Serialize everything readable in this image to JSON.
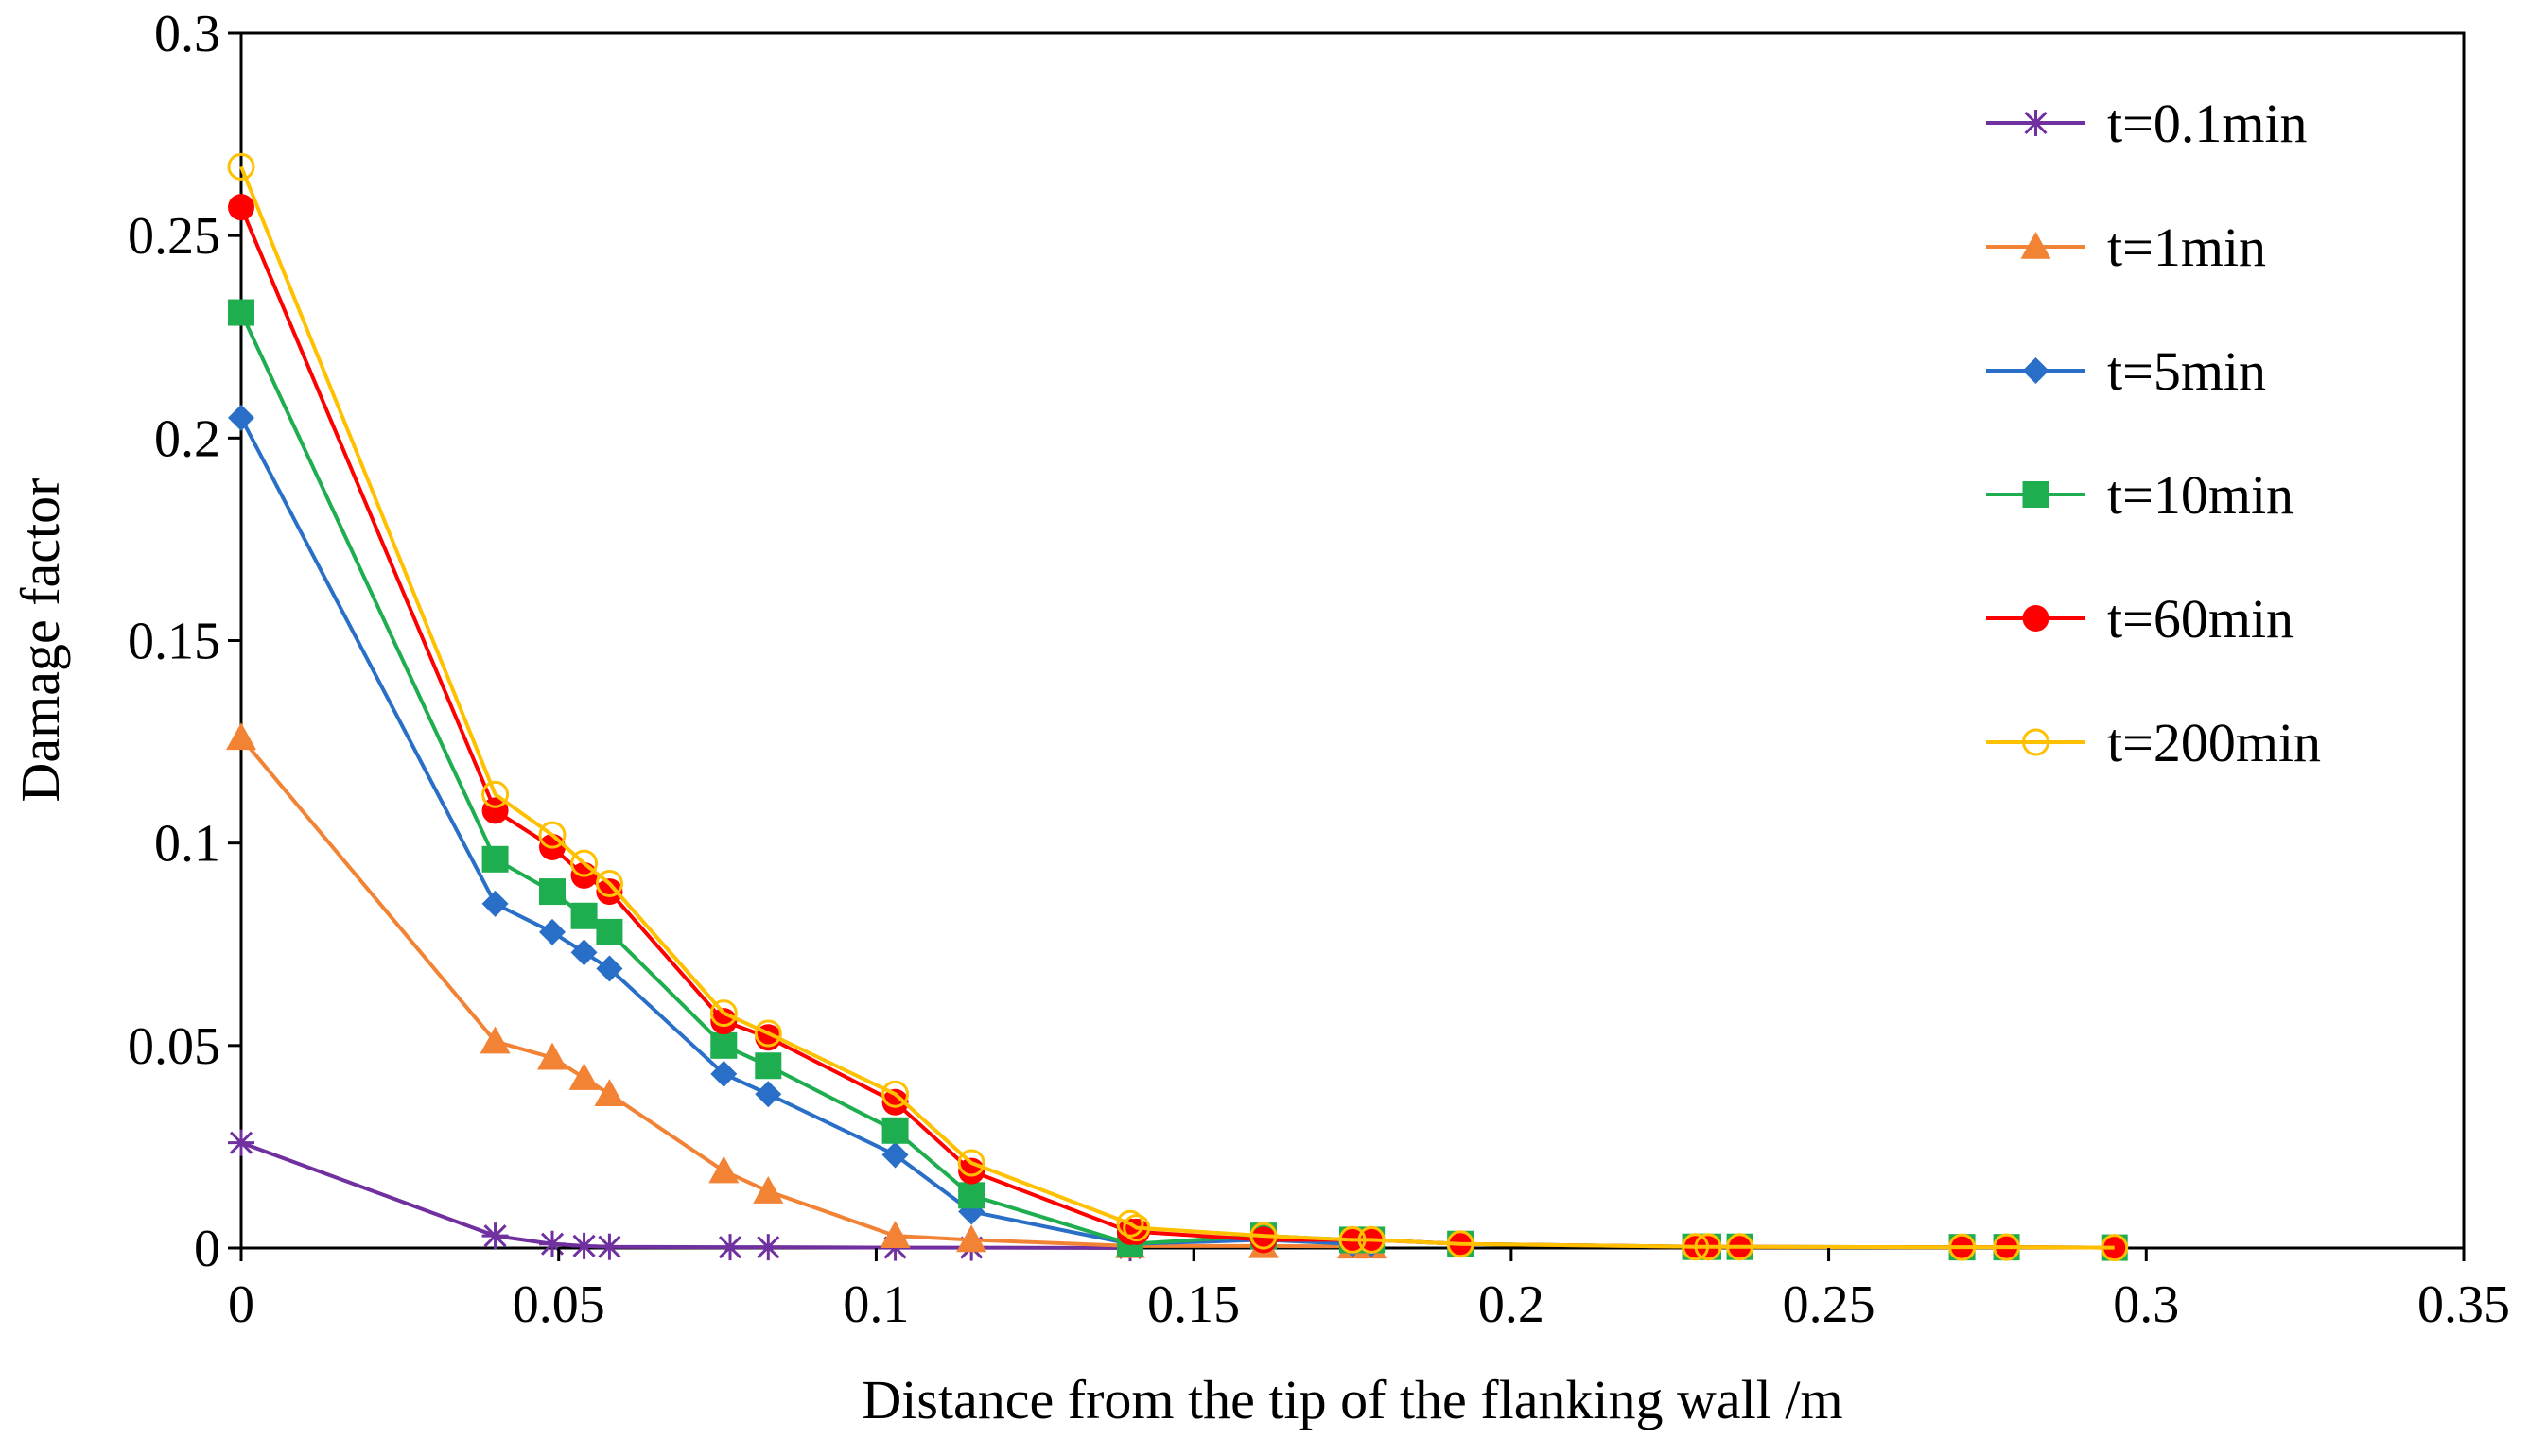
{
  "chart_data": {
    "type": "line",
    "title": "",
    "xlabel": "Distance from the tip of the flanking wall /m",
    "ylabel": "Damage factor",
    "xlim": [
      0,
      0.35
    ],
    "ylim": [
      0,
      0.3
    ],
    "x_ticks": [
      0,
      0.05,
      0.1,
      0.15,
      0.2,
      0.25,
      0.3,
      0.35
    ],
    "x_tick_labels": [
      "0",
      "0.05",
      "0.1",
      "0.15",
      "0.2",
      "0.25",
      "0.3",
      "0.35"
    ],
    "y_ticks": [
      0,
      0.05,
      0.1,
      0.15,
      0.2,
      0.25,
      0.3
    ],
    "y_tick_labels": [
      "0",
      "0.05",
      "0.1",
      "0.15",
      "0.2",
      "0.25",
      "0.3"
    ],
    "grid": false,
    "legend_position": "right",
    "series": [
      {
        "name": "t=0.1min",
        "color": "#7030a0",
        "marker": "star",
        "x": [
          0,
          0.04,
          0.049,
          0.054,
          0.058,
          0.077,
          0.083,
          0.103,
          0.115,
          0.14
        ],
        "y": [
          0.026,
          0.003,
          0.001,
          0.0005,
          0.0003,
          0.0002,
          0.0002,
          0.0001,
          0.0001,
          0.0
        ]
      },
      {
        "name": "t=1min",
        "color": "#f28234",
        "marker": "triangle",
        "x": [
          0,
          0.04,
          0.049,
          0.054,
          0.058,
          0.076,
          0.083,
          0.103,
          0.115,
          0.14,
          0.161,
          0.175,
          0.178
        ],
        "y": [
          0.126,
          0.051,
          0.047,
          0.042,
          0.038,
          0.019,
          0.014,
          0.003,
          0.002,
          0.0005,
          0.0005,
          0.0004,
          0.0004
        ]
      },
      {
        "name": "t=5min",
        "color": "#2a6fc7",
        "marker": "diamond",
        "x": [
          0,
          0.04,
          0.049,
          0.054,
          0.058,
          0.076,
          0.083,
          0.103,
          0.115,
          0.14,
          0.161,
          0.175,
          0.178
        ],
        "y": [
          0.205,
          0.085,
          0.078,
          0.073,
          0.069,
          0.043,
          0.038,
          0.023,
          0.009,
          0.001,
          0.002,
          0.001,
          0.001
        ]
      },
      {
        "name": "t=10min",
        "color": "#1fae4f",
        "marker": "square",
        "x": [
          0,
          0.04,
          0.049,
          0.054,
          0.058,
          0.076,
          0.083,
          0.103,
          0.115,
          0.14,
          0.161,
          0.175,
          0.178,
          0.192,
          0.229,
          0.231,
          0.236,
          0.271,
          0.278,
          0.295
        ],
        "y": [
          0.231,
          0.096,
          0.088,
          0.082,
          0.078,
          0.05,
          0.045,
          0.029,
          0.013,
          0.001,
          0.003,
          0.002,
          0.002,
          0.001,
          0.0003,
          0.0003,
          0.0003,
          0.0002,
          0.0002,
          0.0001
        ]
      },
      {
        "name": "t=60min",
        "color": "#ff0000",
        "marker": "circle",
        "x": [
          0,
          0.04,
          0.049,
          0.054,
          0.058,
          0.076,
          0.083,
          0.103,
          0.115,
          0.14,
          0.141,
          0.161,
          0.175,
          0.178,
          0.192,
          0.229,
          0.231,
          0.236,
          0.271,
          0.278,
          0.295
        ],
        "y": [
          0.257,
          0.108,
          0.099,
          0.092,
          0.088,
          0.056,
          0.052,
          0.036,
          0.019,
          0.004,
          0.004,
          0.002,
          0.002,
          0.002,
          0.001,
          0.0003,
          0.0003,
          0.0003,
          0.0002,
          0.0002,
          0.0001
        ]
      },
      {
        "name": "t=200min",
        "color": "#ffc000",
        "marker": "open-circle",
        "x": [
          0,
          0.04,
          0.049,
          0.054,
          0.058,
          0.076,
          0.083,
          0.103,
          0.115,
          0.14,
          0.141,
          0.161,
          0.175,
          0.178,
          0.192,
          0.229,
          0.231,
          0.236,
          0.271,
          0.278,
          0.295
        ],
        "y": [
          0.267,
          0.112,
          0.102,
          0.095,
          0.09,
          0.058,
          0.053,
          0.038,
          0.021,
          0.006,
          0.005,
          0.003,
          0.002,
          0.002,
          0.001,
          0.0003,
          0.0003,
          0.0003,
          0.0002,
          0.0002,
          0.0001
        ]
      }
    ]
  }
}
